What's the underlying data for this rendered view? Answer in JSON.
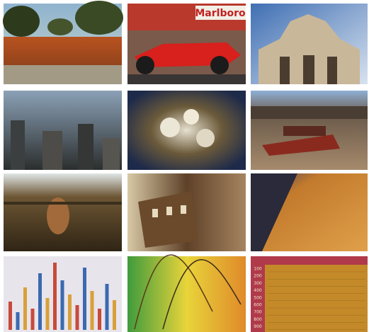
{
  "photo_texts": {
    "banner": "Marlboro"
  },
  "table": {
    "row_labels": [
      "100",
      "200",
      "300",
      "400",
      "500",
      "600",
      "700",
      "800",
      "900"
    ]
  }
}
